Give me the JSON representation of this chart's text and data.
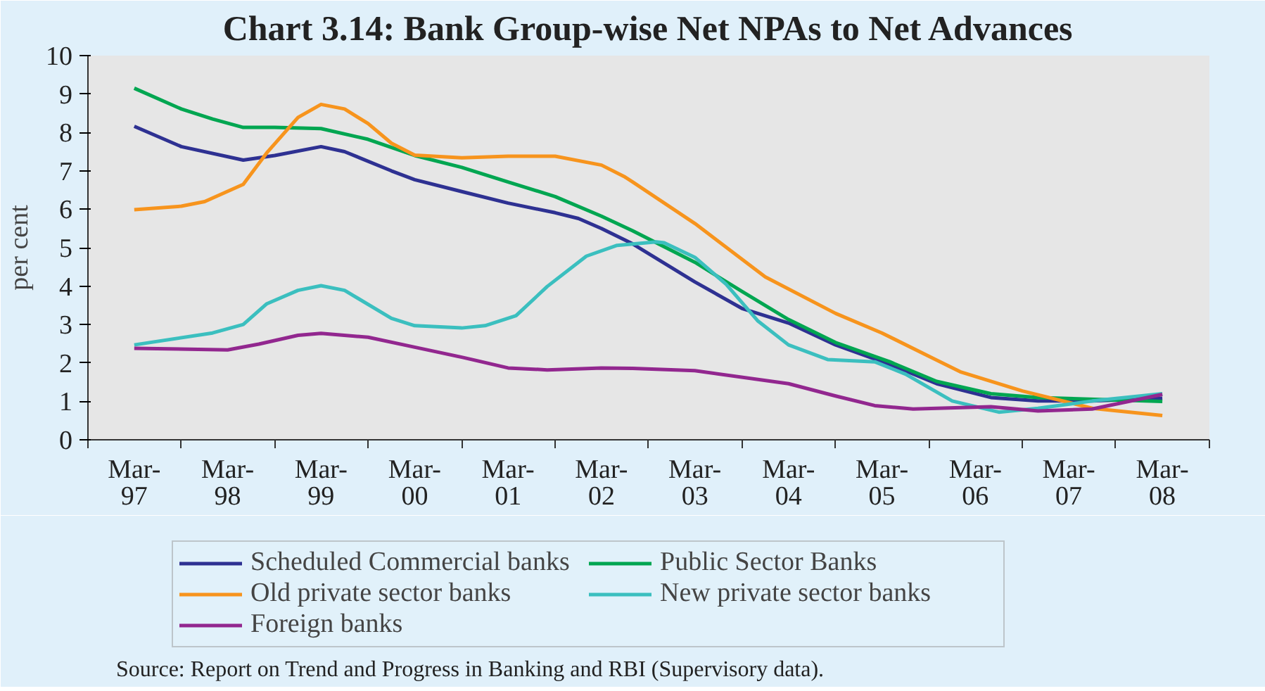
{
  "chart_data": {
    "type": "line",
    "title": "Chart 3.14: Bank Group-wise Net NPAs to Net Advances",
    "ylabel": "per cent",
    "xlim": [
      "1996-09",
      "2008-09"
    ],
    "xticks": [
      {
        "value": "1997-03",
        "label": "Mar-\n97"
      },
      {
        "value": "1998-03",
        "label": "Mar-\n98"
      },
      {
        "value": "1999-03",
        "label": "Mar-\n99"
      },
      {
        "value": "2000-03",
        "label": "Mar-\n00"
      },
      {
        "value": "2001-03",
        "label": "Mar-\n01"
      },
      {
        "value": "2002-03",
        "label": "Mar-\n02"
      },
      {
        "value": "2003-03",
        "label": "Mar-\n03"
      },
      {
        "value": "2004-03",
        "label": "Mar-\n04"
      },
      {
        "value": "2005-03",
        "label": "Mar-\n05"
      },
      {
        "value": "2006-03",
        "label": "Mar-\n06"
      },
      {
        "value": "2007-03",
        "label": "Mar-\n07"
      },
      {
        "value": "2008-03",
        "label": "Mar-\n08"
      },
      {
        "value": "1996-09",
        "label": null
      },
      {
        "value": "1997-09",
        "label": null
      },
      {
        "value": "1998-09",
        "label": null
      },
      {
        "value": "1999-09",
        "label": null
      },
      {
        "value": "2000-09",
        "label": null
      },
      {
        "value": "2001-09",
        "label": null
      },
      {
        "value": "2002-09",
        "label": null
      },
      {
        "value": "2003-09",
        "label": null
      },
      {
        "value": "2004-09",
        "label": null
      },
      {
        "value": "2005-09",
        "label": null
      },
      {
        "value": "2006-09",
        "label": null
      },
      {
        "value": "2007-09",
        "label": null
      },
      {
        "value": "2008-09",
        "label": null
      }
    ],
    "ylim": [
      0,
      10
    ],
    "yticks": [
      0,
      1,
      2,
      3,
      4,
      5,
      6,
      7,
      8,
      9,
      10
    ],
    "legend": "bottom",
    "marker": "none",
    "line_style": "solid",
    "series": [
      {
        "name": "Scheduled Commercial banks",
        "color": "#2e3192",
        "x": [
          "1997-03",
          "1997-09",
          "1998-05",
          "1998-09",
          "1999-03",
          "1999-06",
          "1999-12",
          "2000-03",
          "2000-09",
          "2001-03",
          "2001-09",
          "2001-12",
          "2002-03",
          "2002-07",
          "2003-03",
          "2003-09",
          "2004-03",
          "2004-09",
          "2005-04",
          "2005-10",
          "2006-05",
          "2006-11",
          "2007-06",
          "2008-03"
        ],
        "values": [
          8.16,
          7.63,
          7.28,
          7.4,
          7.63,
          7.5,
          7.0,
          6.77,
          6.46,
          6.16,
          5.91,
          5.76,
          5.5,
          5.1,
          4.11,
          3.42,
          3.04,
          2.47,
          1.96,
          1.46,
          1.1,
          1.01,
          1.01,
          1.08
        ]
      },
      {
        "name": "Public Sector Banks",
        "color": "#00a651",
        "x": [
          "1997-03",
          "1997-09",
          "1998-01",
          "1998-05",
          "1998-09",
          "1999-03",
          "1999-09",
          "2000-03",
          "2000-09",
          "2001-03",
          "2001-09",
          "2002-03",
          "2002-07",
          "2003-03",
          "2003-09",
          "2004-03",
          "2004-09",
          "2005-04",
          "2005-10",
          "2006-05",
          "2006-11",
          "2008-03"
        ],
        "values": [
          9.15,
          8.61,
          8.35,
          8.13,
          8.13,
          8.1,
          7.82,
          7.4,
          7.09,
          6.71,
          6.33,
          5.82,
          5.44,
          4.62,
          3.86,
          3.13,
          2.53,
          2.03,
          1.52,
          1.2,
          1.1,
          1.0
        ]
      },
      {
        "name": "Old private sector banks",
        "color": "#f7941d",
        "x": [
          "1997-03",
          "1997-09",
          "1997-12",
          "1998-05",
          "1998-08",
          "1998-12",
          "1999-03",
          "1999-06",
          "1999-09",
          "1999-12",
          "2000-03",
          "2000-09",
          "2001-03",
          "2001-09",
          "2002-03",
          "2002-06",
          "2002-07",
          "2003-03",
          "2003-12",
          "2004-09",
          "2005-03",
          "2006-01",
          "2006-09",
          "2007-06",
          "2008-03"
        ],
        "values": [
          5.99,
          6.08,
          6.2,
          6.65,
          7.47,
          8.39,
          8.73,
          8.61,
          8.23,
          7.72,
          7.41,
          7.34,
          7.38,
          7.38,
          7.15,
          6.84,
          6.71,
          5.63,
          4.24,
          3.29,
          2.78,
          1.77,
          1.27,
          0.82,
          0.63
        ]
      },
      {
        "name": "New private sector banks",
        "color": "#3bbfbf",
        "x": [
          "1997-03",
          "1998-01",
          "1998-05",
          "1998-08",
          "1998-12",
          "1999-03",
          "1999-06",
          "1999-12",
          "2000-03",
          "2000-09",
          "2000-12",
          "2001-04",
          "2001-08",
          "2002-01",
          "2002-05",
          "2002-10",
          "2002-11",
          "2003-03",
          "2003-07",
          "2003-11",
          "2004-03",
          "2004-08",
          "2005-02",
          "2005-06",
          "2005-12",
          "2006-06",
          "2006-11",
          "2007-06",
          "2008-03"
        ],
        "values": [
          2.47,
          2.78,
          3.0,
          3.54,
          3.89,
          4.01,
          3.89,
          3.16,
          2.97,
          2.91,
          2.97,
          3.23,
          3.99,
          4.78,
          5.06,
          5.15,
          5.13,
          4.75,
          4.05,
          3.1,
          2.47,
          2.09,
          2.03,
          1.71,
          1.01,
          0.72,
          0.82,
          1.01,
          1.2
        ]
      },
      {
        "name": "Foreign banks",
        "color": "#92278f",
        "x": [
          "1997-03",
          "1998-03",
          "1998-07",
          "1998-12",
          "1999-03",
          "1999-09",
          "2000-03",
          "2000-09",
          "2001-03",
          "2001-08",
          "2002-03",
          "2002-07",
          "2003-03",
          "2004-03",
          "2004-09",
          "2005-02",
          "2005-07",
          "2006-05",
          "2006-11",
          "2007-06",
          "2008-03"
        ],
        "values": [
          2.38,
          2.34,
          2.49,
          2.72,
          2.77,
          2.67,
          2.41,
          2.15,
          1.87,
          1.82,
          1.87,
          1.86,
          1.8,
          1.46,
          1.14,
          0.89,
          0.8,
          0.86,
          0.75,
          0.8,
          1.18
        ]
      }
    ],
    "annotations": [
      "Source: Report on Trend and Progress in Banking and RBI (Supervisory data)."
    ]
  }
}
